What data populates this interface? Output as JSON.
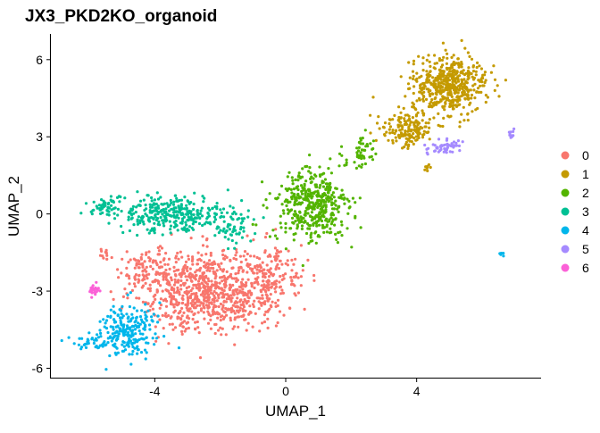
{
  "chart_data": {
    "type": "scatter",
    "title": "JX3_PKD2KO_organoid",
    "xlabel": "UMAP_1",
    "ylabel": "UMAP_2",
    "xlim": [
      -7.2,
      7.8
    ],
    "ylim": [
      -6.4,
      7.0
    ],
    "x_ticks": [
      -4,
      0,
      4
    ],
    "y_ticks": [
      -6,
      -3,
      0,
      3,
      6
    ],
    "x_tick_labels": [
      "-4",
      "0",
      "4"
    ],
    "y_tick_labels": [
      "-6",
      "-3",
      "0",
      "3",
      "6"
    ],
    "grid": false,
    "legend_position": "right",
    "legend_title": "",
    "series": [
      {
        "name": "0",
        "color": "#F8766D",
        "approx_cells": 1100,
        "regions": [
          {
            "center": [
              -2.4,
              -3.0
            ],
            "spread": [
              1.35,
              1.05
            ],
            "n": 780
          },
          {
            "center": [
              -0.5,
              -2.5
            ],
            "spread": [
              0.7,
              0.9
            ],
            "n": 180
          },
          {
            "center": [
              -4.2,
              -2.2
            ],
            "spread": [
              0.6,
              0.5
            ],
            "n": 90
          },
          {
            "center": [
              -5.5,
              -1.6
            ],
            "spread": [
              0.12,
              0.25
            ],
            "n": 12
          }
        ]
      },
      {
        "name": "1",
        "color": "#C49A00",
        "approx_cells": 720,
        "regions": [
          {
            "center": [
              5.0,
              5.0
            ],
            "spread": [
              0.75,
              0.7
            ],
            "n": 520
          },
          {
            "center": [
              3.7,
              3.3
            ],
            "spread": [
              0.55,
              0.45
            ],
            "n": 160
          },
          {
            "center": [
              4.35,
              1.8
            ],
            "spread": [
              0.1,
              0.3
            ],
            "n": 8
          }
        ]
      },
      {
        "name": "2",
        "color": "#53B400",
        "approx_cells": 520,
        "regions": [
          {
            "center": [
              0.8,
              0.3
            ],
            "spread": [
              0.75,
              0.95
            ],
            "n": 430
          },
          {
            "center": [
              2.3,
              2.3
            ],
            "spread": [
              0.35,
              0.45
            ],
            "n": 50
          }
        ]
      },
      {
        "name": "3",
        "color": "#00C094",
        "approx_cells": 440,
        "regions": [
          {
            "center": [
              -3.4,
              0.0
            ],
            "spread": [
              1.15,
              0.45
            ],
            "n": 330
          },
          {
            "center": [
              -5.5,
              0.3
            ],
            "spread": [
              0.25,
              0.25
            ],
            "n": 45
          },
          {
            "center": [
              -1.7,
              -0.5
            ],
            "spread": [
              0.4,
              0.5
            ],
            "n": 50
          }
        ]
      },
      {
        "name": "4",
        "color": "#00B6EB",
        "approx_cells": 280,
        "regions": [
          {
            "center": [
              -4.8,
              -4.5
            ],
            "spread": [
              0.55,
              0.7
            ],
            "n": 220
          },
          {
            "center": [
              -5.9,
              -5.0
            ],
            "spread": [
              0.45,
              0.2
            ],
            "n": 40
          },
          {
            "center": [
              6.6,
              -1.55
            ],
            "spread": [
              0.05,
              0.05
            ],
            "n": 6
          }
        ]
      },
      {
        "name": "5",
        "color": "#A58AFF",
        "approx_cells": 70,
        "regions": [
          {
            "center": [
              4.85,
              2.6
            ],
            "spread": [
              0.35,
              0.2
            ],
            "n": 50
          },
          {
            "center": [
              6.9,
              3.1
            ],
            "spread": [
              0.05,
              0.12
            ],
            "n": 12
          }
        ]
      },
      {
        "name": "6",
        "color": "#FB61D7",
        "approx_cells": 25,
        "regions": [
          {
            "center": [
              -5.9,
              -3.0
            ],
            "spread": [
              0.12,
              0.15
            ],
            "n": 25
          }
        ]
      }
    ]
  }
}
